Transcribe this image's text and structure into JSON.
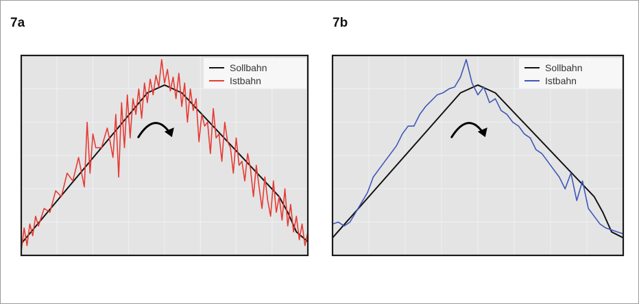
{
  "panels": [
    {
      "id": "a",
      "label": "7a",
      "legend": {
        "reference": "Sollbahn",
        "actual": "Istbahn"
      }
    },
    {
      "id": "b",
      "label": "7b",
      "legend": {
        "reference": "Sollbahn",
        "actual": "Istbahn"
      }
    }
  ],
  "colors": {
    "plot_background": "#e4e4e4",
    "grid": "#eef1f4",
    "reference_line": "#111111",
    "actual_a": "#e63a33",
    "actual_b": "#3d55b8",
    "arrow": "#000000"
  },
  "chart_data": [
    {
      "type": "line",
      "xlim": [
        0,
        1
      ],
      "ylim": [
        0,
        1
      ],
      "grid": true,
      "legend_position": "top-right",
      "axis_ticks": false,
      "direction_arrow_icon": "curved-arrow-right",
      "series": [
        {
          "name": "Sollbahn",
          "role": "reference",
          "x": [
            0.0,
            0.44,
            0.5,
            0.56,
            0.9,
            0.93,
            0.96,
            1.0
          ],
          "y": [
            0.06,
            0.83,
            0.87,
            0.83,
            0.3,
            0.22,
            0.12,
            0.07
          ]
        },
        {
          "name": "Istbahn",
          "role": "actual",
          "x": [
            0.0,
            0.01,
            0.02,
            0.03,
            0.04,
            0.05,
            0.06,
            0.08,
            0.1,
            0.12,
            0.14,
            0.16,
            0.18,
            0.2,
            0.22,
            0.23,
            0.24,
            0.25,
            0.26,
            0.28,
            0.3,
            0.31,
            0.32,
            0.33,
            0.34,
            0.35,
            0.36,
            0.37,
            0.38,
            0.39,
            0.4,
            0.41,
            0.42,
            0.43,
            0.44,
            0.45,
            0.46,
            0.47,
            0.48,
            0.49,
            0.5,
            0.51,
            0.52,
            0.53,
            0.54,
            0.55,
            0.56,
            0.57,
            0.58,
            0.59,
            0.6,
            0.61,
            0.62,
            0.63,
            0.64,
            0.65,
            0.66,
            0.67,
            0.68,
            0.69,
            0.7,
            0.71,
            0.72,
            0.73,
            0.74,
            0.75,
            0.76,
            0.77,
            0.78,
            0.79,
            0.8,
            0.81,
            0.82,
            0.83,
            0.84,
            0.85,
            0.86,
            0.87,
            0.88,
            0.89,
            0.9,
            0.91,
            0.92,
            0.93,
            0.94,
            0.95,
            0.96,
            0.97,
            0.98,
            0.99,
            1.0
          ],
          "y": [
            0.02,
            0.14,
            0.05,
            0.16,
            0.1,
            0.2,
            0.15,
            0.24,
            0.22,
            0.33,
            0.3,
            0.42,
            0.38,
            0.5,
            0.35,
            0.68,
            0.42,
            0.62,
            0.55,
            0.55,
            0.65,
            0.58,
            0.5,
            0.72,
            0.4,
            0.78,
            0.55,
            0.82,
            0.6,
            0.8,
            0.72,
            0.85,
            0.7,
            0.88,
            0.78,
            0.9,
            0.82,
            0.92,
            0.86,
            1.0,
            0.88,
            0.95,
            0.84,
            0.91,
            0.8,
            0.93,
            0.76,
            0.88,
            0.68,
            0.85,
            0.74,
            0.8,
            0.58,
            0.72,
            0.66,
            0.68,
            0.52,
            0.75,
            0.6,
            0.62,
            0.48,
            0.68,
            0.58,
            0.55,
            0.42,
            0.6,
            0.46,
            0.48,
            0.38,
            0.52,
            0.44,
            0.3,
            0.46,
            0.35,
            0.24,
            0.4,
            0.28,
            0.2,
            0.38,
            0.22,
            0.3,
            0.18,
            0.34,
            0.15,
            0.26,
            0.12,
            0.2,
            0.08,
            0.16,
            0.05,
            0.12
          ]
        }
      ]
    },
    {
      "type": "line",
      "xlim": [
        0,
        1
      ],
      "ylim": [
        0,
        1
      ],
      "grid": true,
      "legend_position": "top-right",
      "axis_ticks": false,
      "direction_arrow_icon": "curved-arrow-right",
      "series": [
        {
          "name": "Sollbahn",
          "role": "reference",
          "x": [
            0.0,
            0.44,
            0.5,
            0.56,
            0.9,
            0.93,
            0.96,
            1.0
          ],
          "y": [
            0.09,
            0.83,
            0.87,
            0.83,
            0.3,
            0.22,
            0.12,
            0.09
          ]
        },
        {
          "name": "Istbahn",
          "role": "actual",
          "x": [
            0.0,
            0.02,
            0.04,
            0.06,
            0.08,
            0.1,
            0.12,
            0.14,
            0.16,
            0.18,
            0.2,
            0.22,
            0.24,
            0.26,
            0.28,
            0.3,
            0.32,
            0.34,
            0.36,
            0.38,
            0.4,
            0.42,
            0.44,
            0.46,
            0.48,
            0.5,
            0.52,
            0.54,
            0.56,
            0.58,
            0.6,
            0.62,
            0.64,
            0.66,
            0.68,
            0.7,
            0.72,
            0.74,
            0.76,
            0.78,
            0.8,
            0.82,
            0.84,
            0.86,
            0.88,
            0.9,
            0.92,
            0.94,
            0.96,
            0.98,
            1.0
          ],
          "y": [
            0.16,
            0.17,
            0.15,
            0.17,
            0.22,
            0.27,
            0.32,
            0.4,
            0.44,
            0.48,
            0.52,
            0.56,
            0.62,
            0.66,
            0.66,
            0.72,
            0.76,
            0.79,
            0.82,
            0.83,
            0.85,
            0.86,
            0.91,
            1.0,
            0.88,
            0.82,
            0.86,
            0.78,
            0.8,
            0.74,
            0.72,
            0.68,
            0.66,
            0.62,
            0.6,
            0.54,
            0.52,
            0.48,
            0.44,
            0.4,
            0.34,
            0.42,
            0.28,
            0.38,
            0.24,
            0.2,
            0.16,
            0.14,
            0.13,
            0.12,
            0.11
          ]
        }
      ]
    }
  ]
}
